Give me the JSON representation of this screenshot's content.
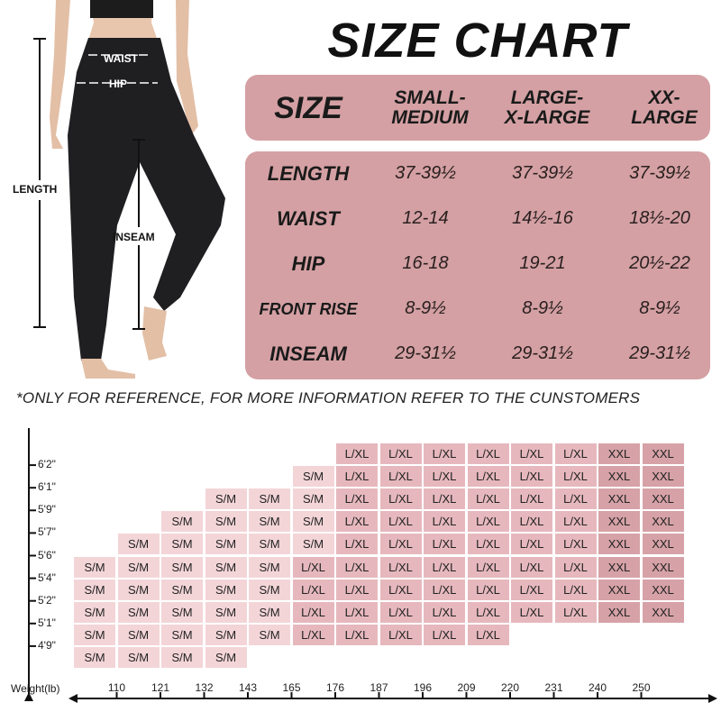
{
  "title": "SIZE CHART",
  "figure": {
    "labels": {
      "waist": "WAIST",
      "hip": "HIP",
      "length": "LENGTH",
      "inseam": "INSEAM"
    }
  },
  "size_table": {
    "header": {
      "label": "SIZE",
      "columns": [
        "SMALL-\nMEDIUM",
        "LARGE-\nX-LARGE",
        "XX-\nLARGE"
      ]
    },
    "rows": [
      {
        "label": "LENGTH",
        "values": [
          "37-39½",
          "37-39½",
          "37-39½"
        ]
      },
      {
        "label": "WAIST",
        "values": [
          "12-14",
          "14½-16",
          "18½-20"
        ]
      },
      {
        "label": "HIP",
        "values": [
          "16-18",
          "19-21",
          "20½-22"
        ]
      },
      {
        "label": "FRONT RISE",
        "values": [
          "8-9½",
          "8-9½",
          "8-9½"
        ]
      },
      {
        "label": "INSEAM",
        "values": [
          "29-31½",
          "29-31½",
          "29-31½"
        ]
      }
    ],
    "color": "#d4a0a3"
  },
  "note": "*ONLY FOR REFERENCE, FOR MORE INFORMATION REFER TO THE CUNSTOMERS",
  "grid": {
    "height_labels": [
      "6'2\"",
      "6'1\"",
      "5'9\"",
      "5'7\"",
      "5'6\"",
      "5'4\"",
      "5'2\"",
      "5'1\"",
      "4'9\""
    ],
    "weight_axis_label": "Weight(lb)",
    "weight_labels": [
      "110",
      "121",
      "132",
      "143",
      "165",
      "176",
      "187",
      "196",
      "209",
      "220",
      "231",
      "240",
      "250"
    ],
    "rows": [
      [
        "",
        "",
        "",
        "",
        "",
        "",
        "L/XL",
        "L/XL",
        "L/XL",
        "L/XL",
        "L/XL",
        "L/XL",
        "XXL",
        "XXL"
      ],
      [
        "",
        "",
        "",
        "",
        "",
        "S/M",
        "L/XL",
        "L/XL",
        "L/XL",
        "L/XL",
        "L/XL",
        "L/XL",
        "XXL",
        "XXL"
      ],
      [
        "",
        "",
        "",
        "S/M",
        "S/M",
        "S/M",
        "L/XL",
        "L/XL",
        "L/XL",
        "L/XL",
        "L/XL",
        "L/XL",
        "XXL",
        "XXL"
      ],
      [
        "",
        "",
        "S/M",
        "S/M",
        "S/M",
        "S/M",
        "L/XL",
        "L/XL",
        "L/XL",
        "L/XL",
        "L/XL",
        "L/XL",
        "XXL",
        "XXL"
      ],
      [
        "",
        "S/M",
        "S/M",
        "S/M",
        "S/M",
        "S/M",
        "L/XL",
        "L/XL",
        "L/XL",
        "L/XL",
        "L/XL",
        "L/XL",
        "XXL",
        "XXL"
      ],
      [
        "S/M",
        "S/M",
        "S/M",
        "S/M",
        "S/M",
        "L/XL",
        "L/XL",
        "L/XL",
        "L/XL",
        "L/XL",
        "L/XL",
        "L/XL",
        "XXL",
        "XXL"
      ],
      [
        "S/M",
        "S/M",
        "S/M",
        "S/M",
        "S/M",
        "L/XL",
        "L/XL",
        "L/XL",
        "L/XL",
        "L/XL",
        "L/XL",
        "L/XL",
        "XXL",
        "XXL"
      ],
      [
        "S/M",
        "S/M",
        "S/M",
        "S/M",
        "S/M",
        "L/XL",
        "L/XL",
        "L/XL",
        "L/XL",
        "L/XL",
        "L/XL",
        "L/XL",
        "XXL",
        "XXL"
      ],
      [
        "S/M",
        "S/M",
        "S/M",
        "S/M",
        "S/M",
        "L/XL",
        "L/XL",
        "L/XL",
        "L/XL",
        "L/XL",
        "",
        "",
        "",
        ""
      ],
      [
        "S/M",
        "S/M",
        "S/M",
        "S/M",
        "",
        "",
        "",
        "",
        "",
        "",
        "",
        "",
        "",
        ""
      ]
    ],
    "colors": {
      "S/M": "#f3d5d8",
      "L/XL": "#e6b8bd",
      "XXL": "#d6a2a7"
    }
  }
}
